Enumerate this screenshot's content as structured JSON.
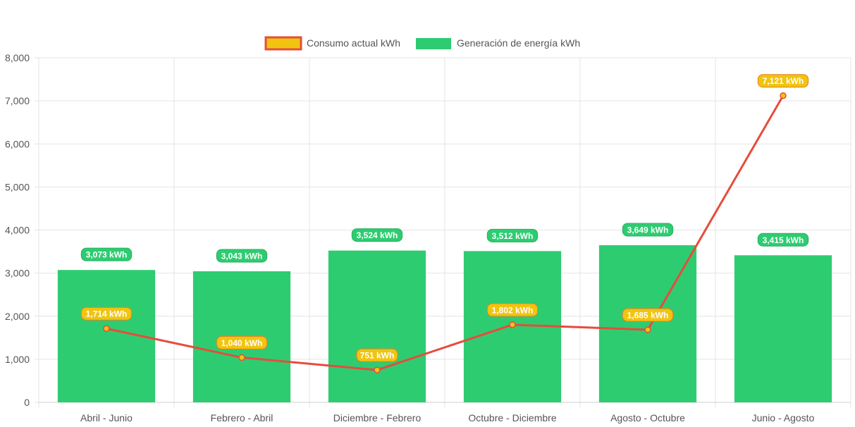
{
  "chart_data": {
    "type": "bar",
    "categories": [
      "Abril - Junio",
      "Febrero - Abril",
      "Diciembre - Febrero",
      "Octubre - Diciembre",
      "Agosto - Octubre",
      "Junio - Agosto"
    ],
    "series": [
      {
        "name": "Consumo actual kWh",
        "type": "line",
        "values": [
          1714,
          1040,
          751,
          1802,
          1685,
          7121
        ],
        "labels": [
          "1,714 kWh",
          "1,040 kWh",
          "751 kWh",
          "1,802 kWh",
          "1,685 kWh",
          "7,121 kWh"
        ],
        "color": "#e74c3c",
        "fill": "#f1c40f"
      },
      {
        "name": "Generación de energía kWh",
        "type": "bar",
        "values": [
          3073,
          3043,
          3524,
          3512,
          3649,
          3415
        ],
        "labels": [
          "3,073 kWh",
          "3,043 kWh",
          "3,524 kWh",
          "3,512 kWh",
          "3,649 kWh",
          "3,415 kWh"
        ],
        "color": "#2ecc71"
      }
    ],
    "y_ticks": [
      "0",
      "1,000",
      "2,000",
      "3,000",
      "4,000",
      "5,000",
      "6,000",
      "7,000",
      "8,000"
    ],
    "ylim": [
      0,
      8000
    ],
    "grid": true,
    "legend_position": "top-center"
  }
}
